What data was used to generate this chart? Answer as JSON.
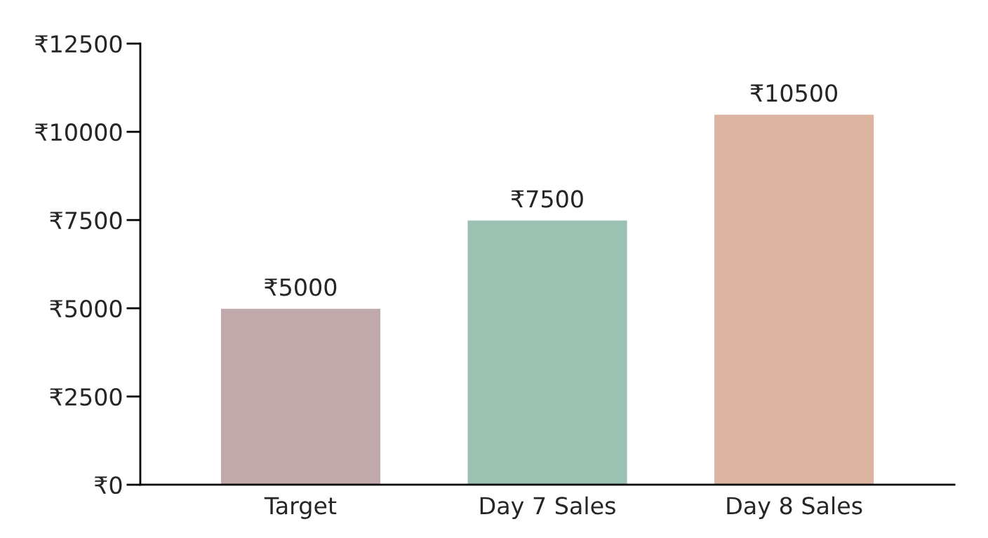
{
  "chart_data": {
    "type": "bar",
    "categories": [
      "Target",
      "Day 7 Sales",
      "Day 8 Sales"
    ],
    "values": [
      5000,
      7500,
      10500
    ],
    "colors": [
      "#c0a9ab",
      "#9bc1b3",
      "#dcb4a2"
    ],
    "value_labels": [
      "₹5000",
      "₹7500",
      "₹10500"
    ],
    "ylim": [
      0,
      12500
    ],
    "yticks": [
      {
        "value": 0,
        "label": "₹0"
      },
      {
        "value": 2500,
        "label": "₹2500"
      },
      {
        "value": 5000,
        "label": "₹5000"
      },
      {
        "value": 7500,
        "label": "₹7500"
      },
      {
        "value": 10000,
        "label": "₹10000"
      },
      {
        "value": 12500,
        "label": "₹12500"
      }
    ],
    "grid": false,
    "legend": false
  }
}
